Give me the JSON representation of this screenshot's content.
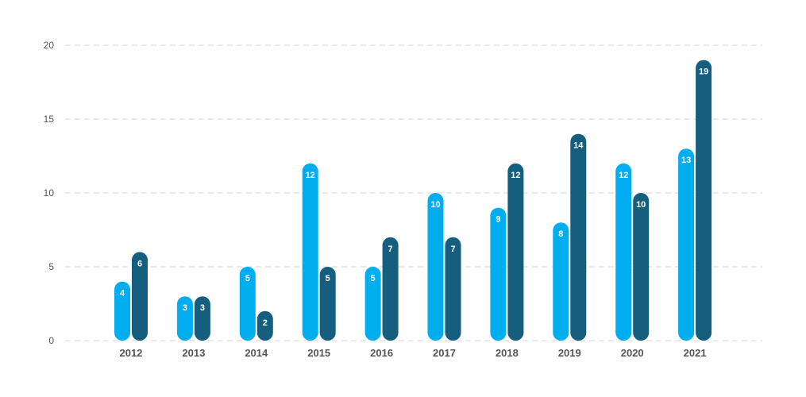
{
  "chart_data": {
    "type": "bar",
    "categories": [
      "2012",
      "2013",
      "2014",
      "2015",
      "2016",
      "2017",
      "2018",
      "2019",
      "2020",
      "2021"
    ],
    "series": [
      {
        "values": [
          4,
          3,
          5,
          12,
          5,
          10,
          9,
          8,
          12,
          13
        ]
      },
      {
        "values": [
          6,
          3,
          2,
          5,
          7,
          7,
          12,
          14,
          10,
          19
        ]
      }
    ],
    "y_ticks": [
      "0",
      "5",
      "10",
      "15",
      "20"
    ],
    "ylim": [
      0,
      20
    ],
    "grid": true,
    "data_labels": true,
    "colors": [
      "#00aeef",
      "#155e7e"
    ],
    "title": "",
    "xlabel": "",
    "ylabel": ""
  }
}
